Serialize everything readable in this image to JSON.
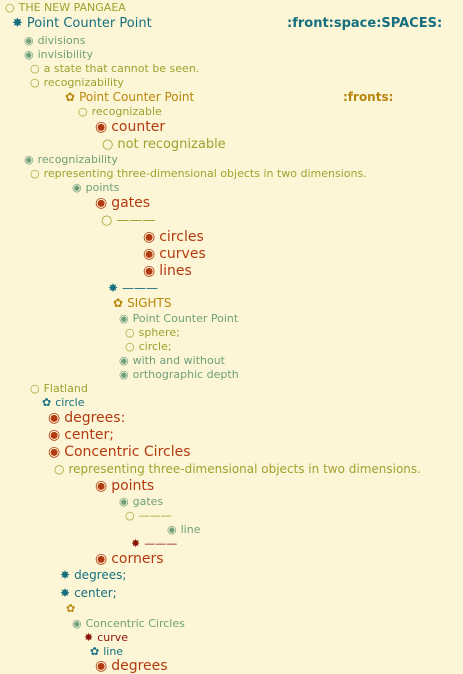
{
  "title": "THE NEW PANGAEA",
  "header": {
    "root": "Point Counter Point",
    "tag": ":front:space:SPACES:"
  },
  "outline": {
    "l2": "divisions",
    "l3": "invisibility",
    "l4": "a state that cannot be seen.",
    "l5": "recognizability",
    "l6": "Point Counter Point",
    "l6tag": ":fronts:",
    "l7": "recognizable",
    "l8": "counter",
    "l9": "not recognizable",
    "l10": "recognizability",
    "l11": "representing three-dimensional objects in two dimensions.",
    "l12": "points",
    "l13": "gates",
    "l14": "———",
    "l15": "circles",
    "l16": "curves",
    "l17": "lines",
    "l18": "———",
    "l19": "SIGHTS",
    "l20": "Point Counter Point",
    "l21": "sphere;",
    "l22": "circle;",
    "l23": "with and without",
    "l24": "orthographic depth",
    "l25": "Flatland",
    "l26": "circle",
    "l27": "degrees:",
    "l28": "center;",
    "l29": "Concentric Circles",
    "l30": "representing three-dimensional objects in two dimensions.",
    "l31": "points",
    "l32": "gates",
    "l33": "———",
    "l34": "line",
    "l35": "———",
    "l36": "corners",
    "l37": "degrees;",
    "l38": "center;",
    "l40": "Concentric Circles",
    "l41": "curve",
    "l42": "line",
    "l43": "degrees"
  },
  "colors": {
    "background": "#fdf6d6",
    "olive": "#a2a030",
    "teal": "#156f7f",
    "green": "#6fa07a",
    "gold": "#b8860b",
    "red": "#b23a10",
    "dark_red": "#8b1208"
  },
  "glyph_names": {
    "open-circle": "○",
    "bullseye": "◉",
    "asterisk": "✸",
    "flower": "✿"
  }
}
